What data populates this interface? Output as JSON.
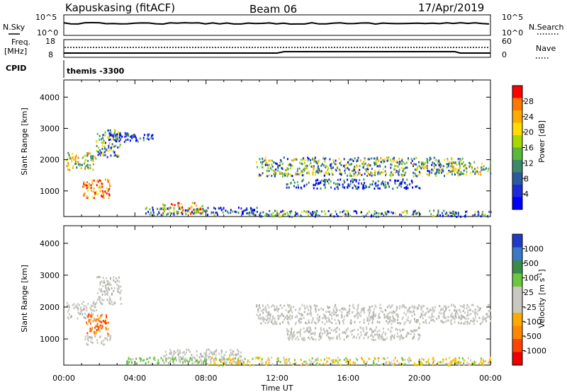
{
  "header": {
    "title": "Kapuskasing (fitACF)",
    "beam": "Beam 06",
    "date": "17/Apr/2019"
  },
  "top_panels": {
    "nsky": {
      "left_label": "N.Sky",
      "right_label": "N.Search",
      "left_ticks": [
        "10^5",
        "10^0"
      ],
      "right_ticks": [
        "10^5",
        "10^0"
      ]
    },
    "freq": {
      "left_label_1": "Freq.",
      "left_label_2": "[MHz]",
      "left_ticks": [
        "18",
        "8"
      ],
      "right_ticks": [
        "60",
        "0"
      ],
      "right_label": "Nave"
    },
    "cpid": {
      "label": "CPID",
      "mode": "themis -3300"
    }
  },
  "chart_data": [
    {
      "type": "heatmap",
      "name": "power",
      "ylabel": "Slant Range [km]",
      "ylim": [
        180,
        4550
      ],
      "yticks": [
        1000,
        2000,
        3000,
        4000
      ],
      "xlim_hours": [
        0,
        24
      ],
      "colorbar": {
        "label": "Power [dB]",
        "ticks": [
          "28",
          "24",
          "20",
          "16",
          "12",
          "8",
          "4"
        ],
        "colors": [
          "#ff0000",
          "#ff7700",
          "#ffaa00",
          "#ffdd00",
          "#a8d800",
          "#5ab93a",
          "#3a8a6a",
          "#2a5aa0",
          "#1e2ad8",
          "#0000ff"
        ]
      },
      "regions": [
        {
          "t0": 0.1,
          "t1": 1.8,
          "r0": 1700,
          "r1": 2250,
          "level": 0.55
        },
        {
          "t0": 1.0,
          "t1": 2.6,
          "r0": 800,
          "r1": 1400,
          "level": 0.85
        },
        {
          "t0": 1.8,
          "t1": 3.2,
          "r0": 2100,
          "r1": 3000,
          "level": 0.35
        },
        {
          "t0": 2.5,
          "t1": 5.0,
          "r0": 2600,
          "r1": 2900,
          "level": 0.15
        },
        {
          "t0": 5.5,
          "t1": 7.8,
          "r0": 300,
          "r1": 650,
          "level": 0.75
        },
        {
          "t0": 4.5,
          "t1": 11.0,
          "r0": 250,
          "r1": 500,
          "level": 0.25
        },
        {
          "t0": 10.8,
          "t1": 22.5,
          "r0": 1500,
          "r1": 2100,
          "level": 0.4
        },
        {
          "t0": 12.5,
          "t1": 20.0,
          "r0": 1100,
          "r1": 1400,
          "level": 0.15
        },
        {
          "t0": 21.5,
          "t1": 24.0,
          "r0": 1550,
          "r1": 1950,
          "level": 0.5
        },
        {
          "t0": 11.0,
          "t1": 24.0,
          "r0": 200,
          "r1": 400,
          "level": 0.3
        }
      ]
    },
    {
      "type": "heatmap",
      "name": "velocity",
      "ylabel": "Slant Range [km]",
      "ylim": [
        180,
        4550
      ],
      "yticks": [
        1000,
        2000,
        3000,
        4000
      ],
      "xlim_hours": [
        0,
        24
      ],
      "xticks": [
        "00:00",
        "04:00",
        "08:00",
        "12:00",
        "16:00",
        "20:00",
        "00:00"
      ],
      "xlabel": "Time UT",
      "colorbar": {
        "label": "Velocity [m s-1]",
        "ticks": [
          "1000",
          "500",
          "100",
          "25",
          "-25",
          "-100",
          "-500",
          "-1000"
        ],
        "colors": [
          "#1e3cc8",
          "#3a78c8",
          "#3a8a4a",
          "#6ac83a",
          "#c8c8c0",
          "#c8c8c0",
          "#ffaa00",
          "#ff8800",
          "#ff4400",
          "#ee0000"
        ]
      },
      "regions": [
        {
          "t0": 0.1,
          "t1": 1.8,
          "r0": 1650,
          "r1": 2200,
          "kind": "grey"
        },
        {
          "t0": 1.8,
          "t1": 3.2,
          "r0": 2100,
          "r1": 3000,
          "kind": "grey"
        },
        {
          "t0": 1.2,
          "t1": 2.5,
          "r0": 1150,
          "r1": 1800,
          "kind": "orange"
        },
        {
          "t0": 1.0,
          "t1": 2.6,
          "r0": 850,
          "r1": 1150,
          "kind": "grey"
        },
        {
          "t0": 5.5,
          "t1": 10.0,
          "r0": 280,
          "r1": 700,
          "kind": "grey"
        },
        {
          "t0": 3.5,
          "t1": 8.0,
          "r0": 250,
          "r1": 450,
          "kind": "green"
        },
        {
          "t0": 10.8,
          "t1": 24.0,
          "r0": 1500,
          "r1": 2100,
          "kind": "grey"
        },
        {
          "t0": 12.5,
          "t1": 20.0,
          "r0": 1000,
          "r1": 1400,
          "kind": "grey"
        },
        {
          "t0": 8.0,
          "t1": 24.0,
          "r0": 200,
          "r1": 450,
          "kind": "yellow"
        }
      ]
    }
  ]
}
